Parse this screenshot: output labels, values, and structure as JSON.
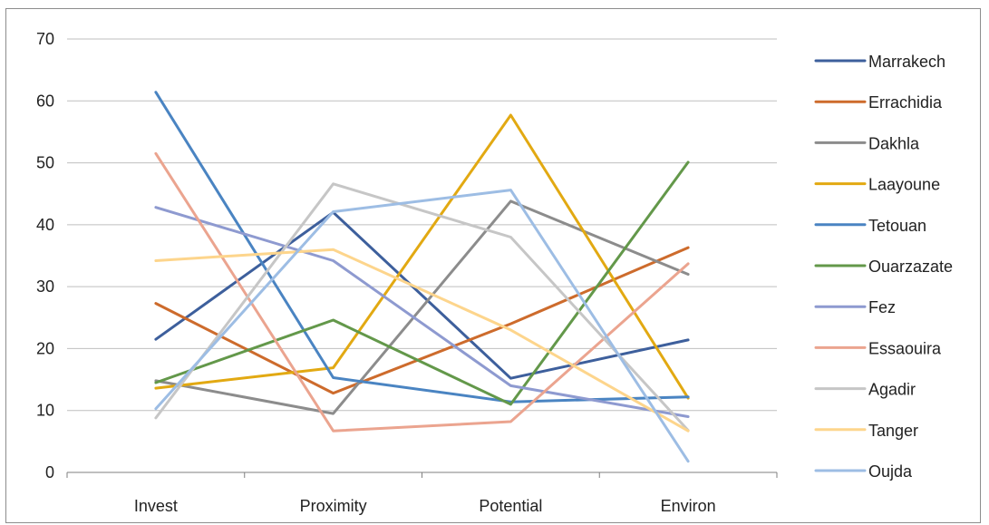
{
  "chart_data": {
    "type": "line",
    "title": "",
    "xlabel": "",
    "ylabel": "",
    "categories": [
      "Invest",
      "Proximity",
      "Potential",
      "Environ"
    ],
    "ylim": [
      0,
      70
    ],
    "yticks": [
      "0",
      "10",
      "20",
      "30",
      "40",
      "50",
      "60",
      "70"
    ],
    "grid": "horizontal",
    "legend_position": "right",
    "series": [
      {
        "name": "Marrakech",
        "color": "#3d5f9c",
        "values": [
          21.5,
          42,
          15.2,
          21.4
        ]
      },
      {
        "name": "Errachidia",
        "color": "#cd6b2c",
        "values": [
          27.3,
          12.8,
          24,
          36.3
        ]
      },
      {
        "name": "Dakhla",
        "color": "#8c8c8c",
        "values": [
          14.8,
          9.5,
          43.8,
          32
        ]
      },
      {
        "name": "Laayoune",
        "color": "#e2a912",
        "values": [
          13.6,
          16.9,
          57.7,
          12
        ]
      },
      {
        "name": "Tetouan",
        "color": "#4a84c2",
        "values": [
          61.4,
          15.3,
          11.4,
          12.2
        ]
      },
      {
        "name": "Ouarzazate",
        "color": "#63984a",
        "values": [
          14.5,
          24.6,
          11,
          50.1
        ]
      },
      {
        "name": "Fez",
        "color": "#8e9ad0",
        "values": [
          42.8,
          34.2,
          14,
          9
        ]
      },
      {
        "name": "Essaouira",
        "color": "#eba48f",
        "values": [
          51.5,
          6.7,
          8.2,
          33.7
        ]
      },
      {
        "name": "Agadir",
        "color": "#c6c6c6",
        "values": [
          8.8,
          46.6,
          38,
          6.8
        ]
      },
      {
        "name": "Tanger",
        "color": "#fdd58c",
        "values": [
          34.2,
          36,
          23,
          6.7
        ]
      },
      {
        "name": "Oujda",
        "color": "#9dbde4",
        "values": [
          10.3,
          42.1,
          45.6,
          1.8
        ]
      }
    ]
  }
}
